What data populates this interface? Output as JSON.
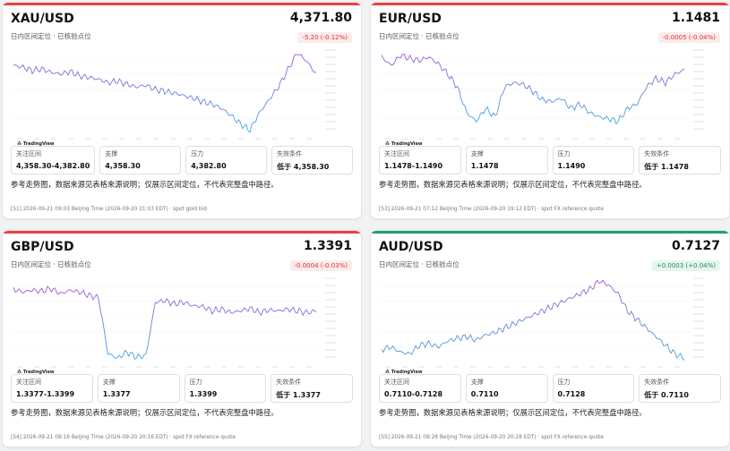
{
  "cards": [
    {
      "symbol": "XAU/USD",
      "price": "4,371.80",
      "subtitle": "日内区间定位 · 已核验点位",
      "change": "-5.20 (-0.12%)",
      "direction": "down",
      "accent_color": "#e8423f",
      "boxes": [
        {
          "label": "关注区间",
          "value": "4,358.30-4,382.80"
        },
        {
          "label": "支撑",
          "value": "4,358.30"
        },
        {
          "label": "压力",
          "value": "4,382.80"
        },
        {
          "label": "失效条件",
          "value": "低于 4,358.30"
        }
      ],
      "note": "参考走势图，数据来源见表格来源说明；仅展示区间定位，不代表完整盘中路径。",
      "footer": "[S1] 2026-09-21 09:03 Beijing Time (2026-09-20 21:03 EDT) · spot gold bid",
      "tv_label": "TradingView"
    },
    {
      "symbol": "EUR/USD",
      "price": "1.1481",
      "subtitle": "日内区间定位 · 已核验点位",
      "change": "-0.0005 (-0.04%)",
      "direction": "down",
      "accent_color": "#e8423f",
      "boxes": [
        {
          "label": "关注区间",
          "value": "1.1478-1.1490"
        },
        {
          "label": "支撑",
          "value": "1.1478"
        },
        {
          "label": "压力",
          "value": "1.1490"
        },
        {
          "label": "失效条件",
          "value": "低于 1.1478"
        }
      ],
      "note": "参考走势图，数据来源见表格来源说明；仅展示区间定位，不代表完整盘中路径。",
      "footer": "[S3] 2026-09-21 07:12 Beijing Time (2026-09-20 19:12 EDT) · spot FX reference quote",
      "tv_label": "TradingView"
    },
    {
      "symbol": "GBP/USD",
      "price": "1.3391",
      "subtitle": "日内区间定位 · 已核验点位",
      "change": "-0.0004 (-0.03%)",
      "direction": "down",
      "accent_color": "#e8423f",
      "boxes": [
        {
          "label": "关注区间",
          "value": "1.3377-1.3399"
        },
        {
          "label": "支撑",
          "value": "1.3377"
        },
        {
          "label": "压力",
          "value": "1.3399"
        },
        {
          "label": "失效条件",
          "value": "低于 1.3377"
        }
      ],
      "note": "参考走势图，数据来源见表格来源说明；仅展示区间定位，不代表完整盘中路径。",
      "footer": "[S4] 2026-09-21 08:16 Beijing Time (2026-09-20 20:16 EDT) · spot FX reference quote",
      "tv_label": "TradingView"
    },
    {
      "symbol": "AUD/USD",
      "price": "0.7127",
      "subtitle": "日内区间定位 · 已核验点位",
      "change": "+0.0003 (+0.04%)",
      "direction": "up",
      "accent_color": "#1f9e74",
      "boxes": [
        {
          "label": "关注区间",
          "value": "0.7110-0.7128"
        },
        {
          "label": "支撑",
          "value": "0.7110"
        },
        {
          "label": "压力",
          "value": "0.7128"
        },
        {
          "label": "失效条件",
          "value": "低于 0.7110"
        }
      ],
      "note": "参考走势图，数据来源见表格来源说明；仅展示区间定位，不代表完整盘中路径。",
      "footer": "[S5] 2026-09-21 08:28 Beijing Time (2026-09-20 20:28 EDT) · spot FX reference quote",
      "tv_label": "TradingView"
    }
  ],
  "colors": {
    "line_top": "#9b59d6",
    "line_bottom": "#3fa7e0",
    "down": "#d8312f",
    "up": "#1a8f5c"
  }
}
